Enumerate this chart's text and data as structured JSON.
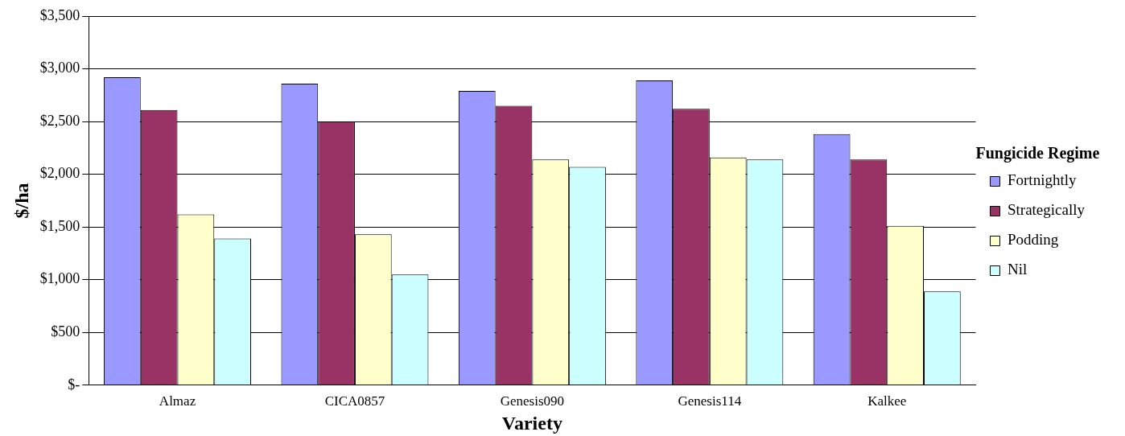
{
  "chart_data": {
    "type": "bar",
    "xlabel": "Variety",
    "ylabel": "$/ha",
    "legend_title": "Fungicide Regime",
    "legend": "right",
    "grid": "y",
    "categories": [
      "Almaz",
      "CICA0857",
      "Genesis090",
      "Genesis114",
      "Kalkee"
    ],
    "series": [
      {
        "name": "Fortnightly",
        "color": "#9999ff",
        "values": [
          2920,
          2860,
          2790,
          2890,
          2380
        ]
      },
      {
        "name": "Strategically",
        "color": "#993366",
        "values": [
          2610,
          2500,
          2650,
          2620,
          2140
        ]
      },
      {
        "name": "Podding",
        "color": "#ffffcc",
        "values": [
          1620,
          1430,
          2140,
          2160,
          1510
        ]
      },
      {
        "name": "Nil",
        "color": "#ccffff",
        "values": [
          1390,
          1050,
          2070,
          2140,
          890
        ]
      }
    ],
    "ylim": [
      0,
      3500
    ],
    "yticks": [
      {
        "value": 0,
        "label": "$-"
      },
      {
        "value": 500,
        "label": "$500"
      },
      {
        "value": 1000,
        "label": "$1,000"
      },
      {
        "value": 1500,
        "label": "$1,500"
      },
      {
        "value": 2000,
        "label": "$2,000"
      },
      {
        "value": 2500,
        "label": "$2,500"
      },
      {
        "value": 3000,
        "label": "$3,000"
      },
      {
        "value": 3500,
        "label": "$3,500"
      }
    ]
  }
}
